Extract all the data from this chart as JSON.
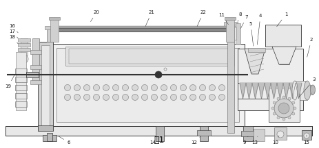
{
  "title": "图1",
  "title_fontsize": 9,
  "bg_color": "#ffffff",
  "lc": "#777777",
  "dc": "#333333",
  "fc_light": "#e8e8e8",
  "fc_mid": "#d0d0d0",
  "fc_dark": "#bbbbbb",
  "fig_width": 4.63,
  "fig_height": 2.16,
  "dpi": 100
}
